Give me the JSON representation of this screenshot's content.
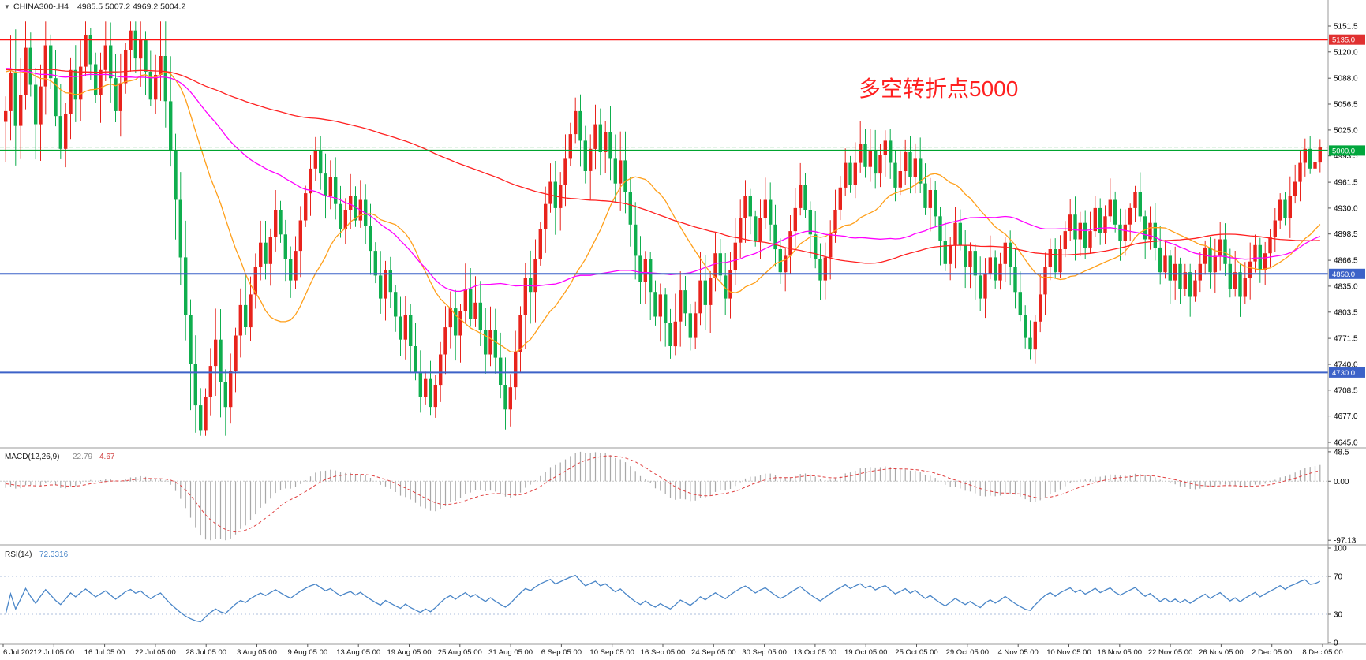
{
  "header": {
    "dropdown_icon": "▼",
    "symbol": "CHINA300-.H4",
    "ohlc": "4985.5 5007.2 4969.2 5004.2"
  },
  "annotation": {
    "text": "多空转折点5000",
    "color": "#ff1f1f"
  },
  "chart_data": {
    "type": "candlestick",
    "symbol": "CHINA300-",
    "timeframe": "H4",
    "title": "CHINA300-.H4",
    "ohlc_display": {
      "open": 4985.5,
      "high": 5007.2,
      "low": 4969.2,
      "close": 5004.2
    },
    "colors": {
      "up": "#e8231c",
      "down": "#0fae4e"
    },
    "closes": [
      5048,
      5095,
      5030,
      5068,
      5125,
      5080,
      5032,
      5078,
      5128,
      5088,
      5042,
      5002,
      5045,
      5098,
      5062,
      5102,
      5140,
      5105,
      5068,
      5098,
      5128,
      5088,
      5048,
      5082,
      5122,
      5146,
      5112,
      5136,
      5096,
      5062,
      5092,
      5115,
      5060,
      5000,
      4940,
      4870,
      4800,
      4740,
      4690,
      4660,
      4700,
      4738,
      4770,
      4718,
      4688,
      4732,
      4775,
      4812,
      4785,
      4825,
      4858,
      4888,
      4862,
      4895,
      4928,
      4898,
      4868,
      4842,
      4878,
      4915,
      4948,
      4978,
      5000,
      4972,
      4945,
      4968,
      4935,
      4905,
      4928,
      4945,
      4915,
      4940,
      4908,
      4878,
      4848,
      4820,
      4855,
      4828,
      4798,
      4770,
      4800,
      4762,
      4730,
      4700,
      4722,
      4688,
      4715,
      4752,
      4785,
      4808,
      4775,
      4805,
      4832,
      4795,
      4815,
      4782,
      4752,
      4782,
      4748,
      4715,
      4685,
      4712,
      4755,
      4800,
      4845,
      4828,
      4868,
      4905,
      4935,
      4962,
      4930,
      4958,
      4990,
      5020,
      5048,
      5012,
      4975,
      5002,
      5032,
      4998,
      5022,
      4990,
      4960,
      4988,
      4950,
      4910,
      4872,
      4840,
      4868,
      4828,
      4798,
      4825,
      4790,
      4762,
      4792,
      4830,
      4802,
      4772,
      4802,
      4842,
      4812,
      4845,
      4875,
      4848,
      4820,
      4855,
      4888,
      4918,
      4945,
      4920,
      4890,
      4918,
      4940,
      4910,
      4880,
      4852,
      4872,
      4902,
      4930,
      4958,
      4928,
      4898,
      4868,
      4842,
      4870,
      4900,
      4928,
      4955,
      4985,
      4958,
      4985,
      5008,
      4980,
      5000,
      4972,
      4995,
      5012,
      4985,
      4955,
      4975,
      4998,
      4968,
      4990,
      4960,
      4930,
      4952,
      4920,
      4890,
      4862,
      4885,
      4912,
      4885,
      4858,
      4878,
      4848,
      4820,
      4850,
      4870,
      4842,
      4862,
      4888,
      4858,
      4828,
      4800,
      4772,
      4758,
      4792,
      4825,
      4858,
      4880,
      4852,
      4880,
      4902,
      4922,
      4892,
      4912,
      4882,
      4902,
      4930,
      4900,
      4920,
      4940,
      4910,
      4890,
      4910,
      4930,
      4950,
      4920,
      4892,
      4912,
      4882,
      4852,
      4872,
      4842,
      4862,
      4832,
      4852,
      4822,
      4842,
      4862,
      4882,
      4852,
      4872,
      4892,
      4862,
      4832,
      4852,
      4822,
      4845,
      4865,
      4885,
      4855,
      4875,
      4895,
      4915,
      4940,
      4918,
      4945,
      4962,
      4985,
      5002,
      4978,
      4985.5,
      5004.2
    ],
    "y_axis": {
      "labels": [
        "5151.5",
        "5120.0",
        "5088.0",
        "5056.5",
        "5025.0",
        "4993.5",
        "4961.5",
        "4930.0",
        "4898.5",
        "4866.5",
        "4835.0",
        "4803.5",
        "4771.5",
        "4740.0",
        "4708.5",
        "4677.0",
        "4645.0"
      ],
      "badges": [
        {
          "value": "5135.0",
          "price": 5135.0,
          "color": "#e03030"
        },
        {
          "value": "5000.0",
          "price": 5000.0,
          "color": "#00a63c"
        },
        {
          "value": "4850.0",
          "price": 4850.0,
          "color": "#3c62c8"
        },
        {
          "value": "4730.0",
          "price": 4730.0,
          "color": "#3c62c8"
        }
      ]
    },
    "hlines": [
      {
        "price": 5135.0,
        "color": "#ff1212",
        "width": 2,
        "dash": false
      },
      {
        "price": 5004.2,
        "color": "#1f9e3d",
        "width": 1,
        "dash": true
      },
      {
        "price": 5000.0,
        "color": "#00a32e",
        "width": 2,
        "dash": false
      },
      {
        "price": 4850.0,
        "color": "#3c62c8",
        "width": 2,
        "dash": false
      },
      {
        "price": 4730.0,
        "color": "#3c62c8",
        "width": 2,
        "dash": false
      }
    ],
    "moving_averages": [
      {
        "period": 21,
        "color": "#ff9f1a"
      },
      {
        "period": 55,
        "color": "#ff00ff"
      },
      {
        "period": 140,
        "color": "#ff2020"
      }
    ],
    "x_axis": {
      "labels": [
        "6 Jul 2021",
        "12 Jul 05:00",
        "16 Jul 05:00",
        "22 Jul 05:00",
        "28 Jul 05:00",
        "3 Aug 05:00",
        "9 Aug 05:00",
        "13 Aug 05:00",
        "19 Aug 05:00",
        "25 Aug 05:00",
        "31 Aug 05:00",
        "6 Sep 05:00",
        "10 Sep 05:00",
        "16 Sep 05:00",
        "24 Sep 05:00",
        "30 Sep 05:00",
        "13 Oct 05:00",
        "19 Oct 05:00",
        "25 Oct 05:00",
        "29 Oct 05:00",
        "4 Nov 05:00",
        "10 Nov 05:00",
        "16 Nov 05:00",
        "22 Nov 05:00",
        "26 Nov 05:00",
        "2 Dec 05:00",
        "8 Dec 05:00"
      ]
    },
    "indicators": {
      "macd": {
        "title": "MACD(12,26,9)",
        "value_main": "22.79",
        "value_signal": "4.67",
        "labels": [
          "48.5",
          "0.00",
          "-97.13"
        ],
        "params": [
          12,
          26,
          9
        ]
      },
      "rsi": {
        "title": "RSI(14)",
        "value": "72.3316",
        "labels": [
          "100",
          "70",
          "30",
          "0"
        ],
        "period": 14,
        "levels": [
          70,
          30
        ]
      }
    }
  }
}
